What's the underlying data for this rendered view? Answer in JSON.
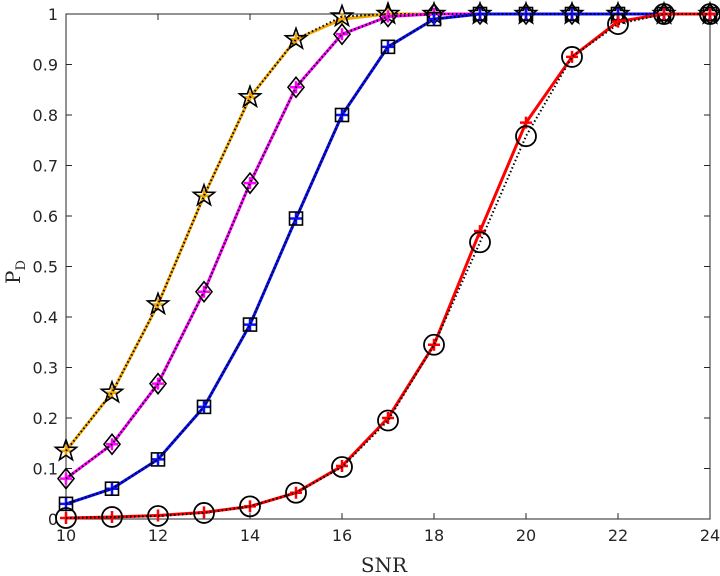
{
  "chart_data": {
    "type": "line",
    "xlabel": "SNR",
    "ylabel": {
      "main": "P",
      "sub": "D"
    },
    "xlim": [
      10,
      24
    ],
    "ylim": [
      0,
      1
    ],
    "xticks": [
      "10",
      "12",
      "14",
      "16",
      "18",
      "20",
      "22",
      "24"
    ],
    "yticks": [
      "0",
      "0.1",
      "0.2",
      "0.3",
      "0.4",
      "0.5",
      "0.6",
      "0.7",
      "0.8",
      "0.9",
      "1"
    ],
    "grid": false,
    "x": [
      10,
      11,
      12,
      13,
      14,
      15,
      16,
      17,
      18,
      19,
      20,
      21,
      22,
      23,
      24
    ],
    "series": [
      {
        "key": "star",
        "color": "#f0a500",
        "marker": "star",
        "values": [
          0.135,
          0.25,
          0.425,
          0.64,
          0.835,
          0.95,
          0.99,
          1,
          1,
          1,
          1,
          1,
          1,
          1,
          1
        ],
        "dotted_values": [
          0.135,
          0.25,
          0.425,
          0.64,
          0.835,
          0.95,
          0.995,
          1,
          1,
          1,
          1,
          1,
          1,
          1,
          1
        ]
      },
      {
        "key": "diamond",
        "color": "#ff00ff",
        "marker": "diamond",
        "values": [
          0.08,
          0.148,
          0.268,
          0.45,
          0.665,
          0.855,
          0.96,
          0.995,
          1,
          1,
          1,
          1,
          1,
          1,
          1
        ],
        "dotted_values": [
          0.08,
          0.148,
          0.268,
          0.45,
          0.665,
          0.855,
          0.96,
          0.995,
          1,
          1,
          1,
          1,
          1,
          1,
          1
        ]
      },
      {
        "key": "square",
        "color": "#0a10ff",
        "marker": "square",
        "values": [
          0.03,
          0.06,
          0.118,
          0.222,
          0.385,
          0.595,
          0.8,
          0.935,
          0.99,
          1,
          1,
          1,
          1,
          1,
          1
        ],
        "dotted_values": [
          0.03,
          0.06,
          0.118,
          0.222,
          0.385,
          0.595,
          0.8,
          0.935,
          0.99,
          1,
          1,
          1,
          1,
          1,
          1
        ]
      },
      {
        "key": "circle",
        "color": "#ff0000",
        "marker": "circle",
        "values": [
          0.002,
          0.004,
          0.007,
          0.013,
          0.025,
          0.052,
          0.105,
          0.2,
          0.345,
          0.57,
          0.785,
          0.915,
          0.985,
          1,
          1
        ],
        "dotted_values": [
          0.002,
          0.004,
          0.006,
          0.012,
          0.025,
          0.052,
          0.103,
          0.195,
          0.345,
          0.548,
          0.758,
          0.915,
          0.98,
          1,
          1
        ]
      }
    ]
  }
}
